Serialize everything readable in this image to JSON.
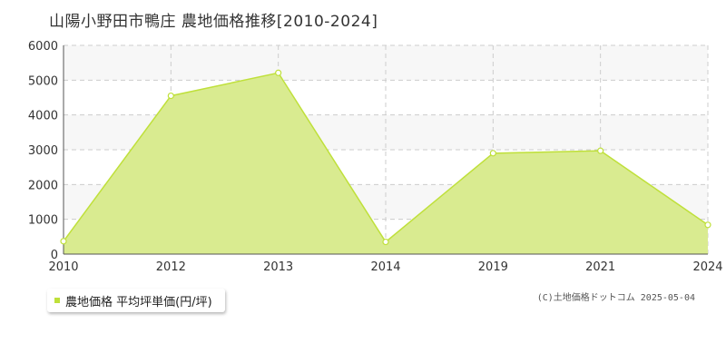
{
  "chart_data": {
    "type": "area",
    "title": "山陽小野田市鴨庄 農地価格推移[2010-2024]",
    "x": [
      "2010",
      "2012",
      "2013",
      "2014",
      "2019",
      "2021",
      "2024"
    ],
    "series": [
      {
        "name": "農地価格 平均坪単価(円/坪)",
        "values": [
          370,
          4550,
          5210,
          350,
          2900,
          2970,
          840
        ]
      }
    ],
    "ylim": [
      0,
      6000
    ],
    "yticks": [
      "0",
      "1000",
      "2000",
      "3000",
      "4000",
      "5000",
      "6000"
    ],
    "grid": true,
    "legend": "bottom-left",
    "colors": {
      "fill": "#d9eb90",
      "line": "#bfe03a",
      "band": "#f7f7f7",
      "grid": "#cccccc"
    }
  },
  "copyright": "(C)土地価格ドットコム 2025-05-04"
}
